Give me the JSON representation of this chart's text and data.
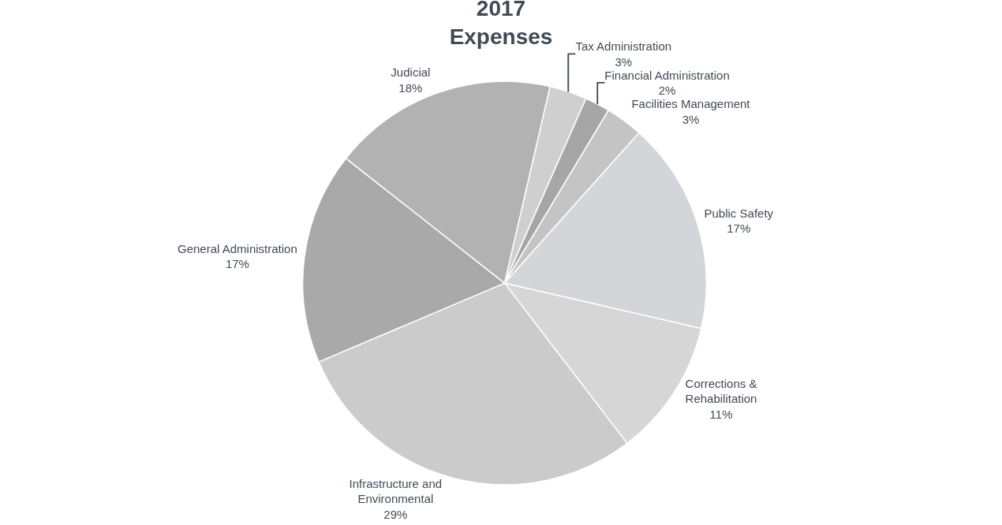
{
  "chart_data": {
    "type": "pie",
    "title": "2017\nExpenses",
    "categories": [
      "Tax Administration",
      "Financial Administration",
      "Facilities Management",
      "Public Safety",
      "Corrections &\nRehabilitation",
      "Infrastructure and\nEnvironmental",
      "General Administration",
      "Judicial"
    ],
    "values": [
      3,
      2,
      3,
      17,
      11,
      29,
      17,
      18
    ],
    "value_labels": [
      "3%",
      "2%",
      "3%",
      "17%",
      "11%",
      "29%",
      "17%",
      "18%"
    ],
    "colors": [
      "#cfcfcf",
      "#a6a6a6",
      "#c4c4c4",
      "#d3d5d9",
      "#d6d6d6",
      "#cbcbcb",
      "#a9a9a9",
      "#b2b2b2"
    ],
    "legend": false
  }
}
